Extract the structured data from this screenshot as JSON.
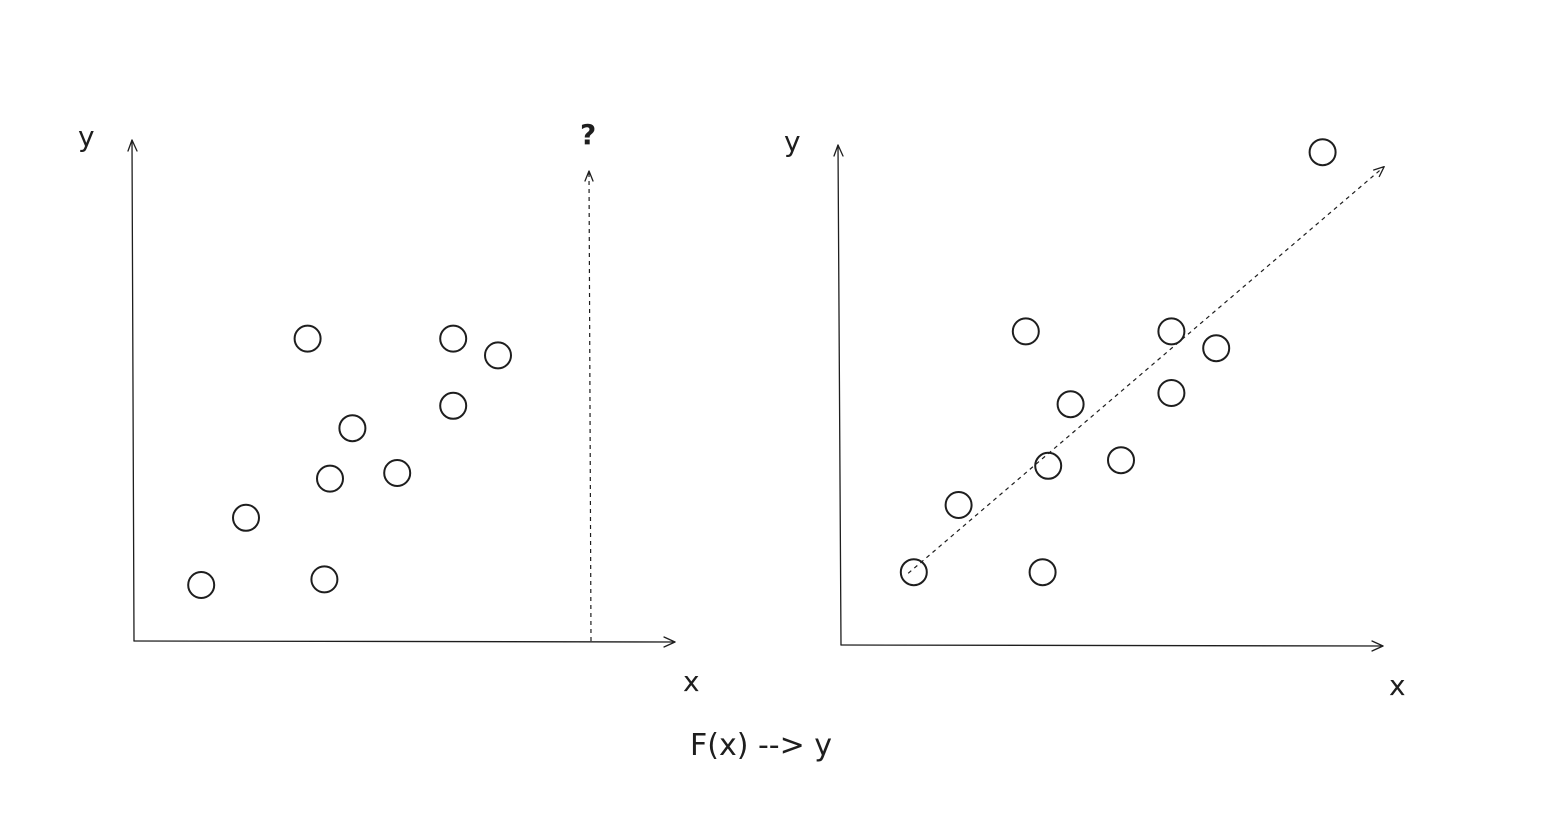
{
  "labels": {
    "left_y_axis": "y",
    "left_x_axis": "x",
    "question": "?",
    "right_y_axis": "y",
    "right_x_axis": "x",
    "caption": "F(x) --> y"
  },
  "chart_data": [
    {
      "type": "scatter",
      "xlabel": "x",
      "ylabel": "y",
      "annotation": "?",
      "points": [
        {
          "x": 1.2,
          "y": 1.0
        },
        {
          "x": 2.0,
          "y": 2.2
        },
        {
          "x": 3.4,
          "y": 1.1
        },
        {
          "x": 3.5,
          "y": 2.9
        },
        {
          "x": 3.1,
          "y": 5.4
        },
        {
          "x": 3.9,
          "y": 3.8
        },
        {
          "x": 4.7,
          "y": 3.0
        },
        {
          "x": 5.7,
          "y": 4.2
        },
        {
          "x": 5.7,
          "y": 5.4
        },
        {
          "x": 6.5,
          "y": 5.1
        }
      ],
      "query_x": 8.1
    },
    {
      "type": "scatter",
      "xlabel": "x",
      "ylabel": "y",
      "fit_line": "dashed",
      "points": [
        {
          "x": 1.3,
          "y": 1.3
        },
        {
          "x": 2.1,
          "y": 2.5
        },
        {
          "x": 3.3,
          "y": 5.6
        },
        {
          "x": 3.6,
          "y": 1.3
        },
        {
          "x": 3.7,
          "y": 3.2
        },
        {
          "x": 4.1,
          "y": 4.3
        },
        {
          "x": 5.0,
          "y": 3.3
        },
        {
          "x": 5.9,
          "y": 4.5
        },
        {
          "x": 5.9,
          "y": 5.6
        },
        {
          "x": 6.7,
          "y": 5.3
        },
        {
          "x": 8.6,
          "y": 8.8
        }
      ],
      "fit": {
        "x_start": 1.2,
        "x_end": 9.7
      }
    }
  ]
}
